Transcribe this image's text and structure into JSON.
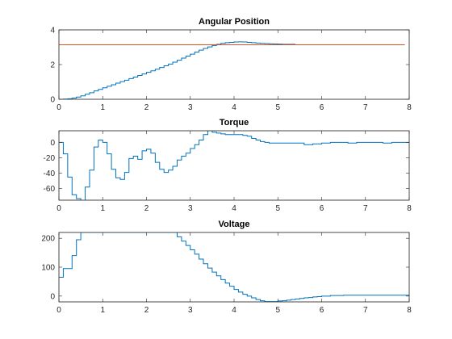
{
  "chart_data": [
    {
      "type": "line",
      "title": "Angular Position",
      "xlim": [
        0,
        8
      ],
      "ylim": [
        0,
        4
      ],
      "xticks": [
        0,
        1,
        2,
        3,
        4,
        5,
        6,
        7,
        8
      ],
      "yticks": [
        0,
        2,
        4
      ],
      "grid": false,
      "series": [
        {
          "style": "step",
          "color": "#0072BD",
          "x": [
            0,
            0.1,
            0.2,
            0.3,
            0.4,
            0.5,
            0.6,
            0.7,
            0.8,
            0.9,
            1.0,
            1.1,
            1.2,
            1.3,
            1.4,
            1.5,
            1.6,
            1.7,
            1.8,
            1.9,
            2.0,
            2.1,
            2.2,
            2.3,
            2.4,
            2.5,
            2.6,
            2.7,
            2.8,
            2.9,
            3.0,
            3.1,
            3.2,
            3.3,
            3.4,
            3.5,
            3.6,
            3.7,
            3.8,
            3.9,
            4.0,
            4.1,
            4.2,
            4.3,
            4.4,
            4.5,
            4.6,
            4.7,
            4.8,
            4.9,
            5.0,
            5.1,
            5.2,
            5.3
          ],
          "y": [
            0,
            0.01,
            0.03,
            0.07,
            0.13,
            0.2,
            0.29,
            0.38,
            0.48,
            0.57,
            0.66,
            0.75,
            0.84,
            0.93,
            1.02,
            1.1,
            1.19,
            1.28,
            1.37,
            1.46,
            1.55,
            1.64,
            1.73,
            1.83,
            1.93,
            2.03,
            2.14,
            2.25,
            2.37,
            2.49,
            2.6,
            2.72,
            2.83,
            2.93,
            3.02,
            3.1,
            3.17,
            3.22,
            3.26,
            3.28,
            3.3,
            3.31,
            3.3,
            3.28,
            3.26,
            3.24,
            3.22,
            3.21,
            3.2,
            3.19,
            3.18,
            3.17,
            3.17,
            3.17
          ]
        },
        {
          "style": "line",
          "color": "#D95319",
          "x": [
            0,
            7.9
          ],
          "y": [
            3.14,
            3.14
          ]
        }
      ]
    },
    {
      "type": "line",
      "title": "Torque",
      "xlim": [
        0,
        8
      ],
      "ylim": [
        -75,
        15
      ],
      "xticks": [
        0,
        1,
        2,
        3,
        4,
        5,
        6,
        7,
        8
      ],
      "yticks": [
        0,
        -20,
        -40,
        -60
      ],
      "grid": false,
      "series": [
        {
          "style": "step",
          "color": "#0072BD",
          "x": [
            0,
            0.1,
            0.2,
            0.3,
            0.4,
            0.5,
            0.6,
            0.7,
            0.8,
            0.9,
            1.0,
            1.1,
            1.2,
            1.3,
            1.4,
            1.5,
            1.6,
            1.7,
            1.8,
            1.9,
            2.0,
            2.1,
            2.2,
            2.3,
            2.4,
            2.5,
            2.6,
            2.7,
            2.8,
            2.9,
            3.0,
            3.1,
            3.2,
            3.3,
            3.4,
            3.5,
            3.6,
            3.7,
            3.8,
            3.9,
            4.0,
            4.1,
            4.2,
            4.3,
            4.4,
            4.5,
            4.6,
            4.7,
            4.8,
            4.9,
            5.0,
            5.2,
            5.4,
            5.6,
            5.8,
            6.0,
            6.2,
            6.4,
            6.6,
            6.8,
            7.0,
            7.2,
            7.4,
            7.6,
            7.8,
            7.9
          ],
          "y": [
            0,
            -15,
            -45,
            -68,
            -73,
            -78,
            -58,
            -36,
            -6,
            3,
            0,
            -15,
            -35,
            -46,
            -48,
            -39,
            -21,
            -18,
            -22,
            -11,
            -9,
            -14,
            -26,
            -35,
            -39,
            -36,
            -31,
            -23,
            -18,
            -14,
            -8,
            -3,
            3,
            10,
            15,
            13,
            12,
            11,
            10,
            10,
            10,
            10,
            9,
            8,
            5,
            3,
            1,
            0,
            -1,
            -1,
            -1,
            -1,
            -1,
            -3,
            -2,
            -1,
            0,
            0,
            -1,
            0,
            0,
            0,
            -1,
            0,
            0,
            0
          ]
        }
      ]
    },
    {
      "type": "line",
      "title": "Voltage",
      "xlim": [
        0,
        8
      ],
      "ylim": [
        -20,
        220
      ],
      "xticks": [
        0,
        1,
        2,
        3,
        4,
        5,
        6,
        7,
        8
      ],
      "yticks": [
        0,
        100,
        200
      ],
      "grid": false,
      "series": [
        {
          "style": "step",
          "color": "#0072BD",
          "x": [
            0,
            0.1,
            0.2,
            0.3,
            0.4,
            0.5,
            0.6,
            0.7,
            0.8,
            0.9,
            1.0,
            1.2,
            1.4,
            1.6,
            1.8,
            2.0,
            2.2,
            2.4,
            2.6,
            2.7,
            2.8,
            2.9,
            3.0,
            3.1,
            3.2,
            3.3,
            3.4,
            3.5,
            3.6,
            3.7,
            3.8,
            3.9,
            4.0,
            4.1,
            4.2,
            4.3,
            4.4,
            4.5,
            4.6,
            4.7,
            4.8,
            4.9,
            5.0,
            5.1,
            5.2,
            5.3,
            5.4,
            5.5,
            5.6,
            5.7,
            5.8,
            5.9,
            6.0,
            6.2,
            6.5,
            7.0,
            7.5,
            7.9
          ],
          "y": [
            65,
            95,
            95,
            140,
            195,
            220,
            220,
            220,
            220,
            220,
            220,
            220,
            220,
            220,
            220,
            220,
            220,
            220,
            220,
            205,
            190,
            175,
            160,
            145,
            128,
            112,
            97,
            83,
            70,
            57,
            45,
            34,
            23,
            14,
            6,
            0,
            -6,
            -12,
            -16,
            -19,
            -19,
            -19,
            -17,
            -16,
            -14,
            -12,
            -10,
            -8,
            -6,
            -5,
            -3,
            -2,
            0,
            2,
            3,
            3,
            3,
            3
          ]
        }
      ]
    }
  ]
}
